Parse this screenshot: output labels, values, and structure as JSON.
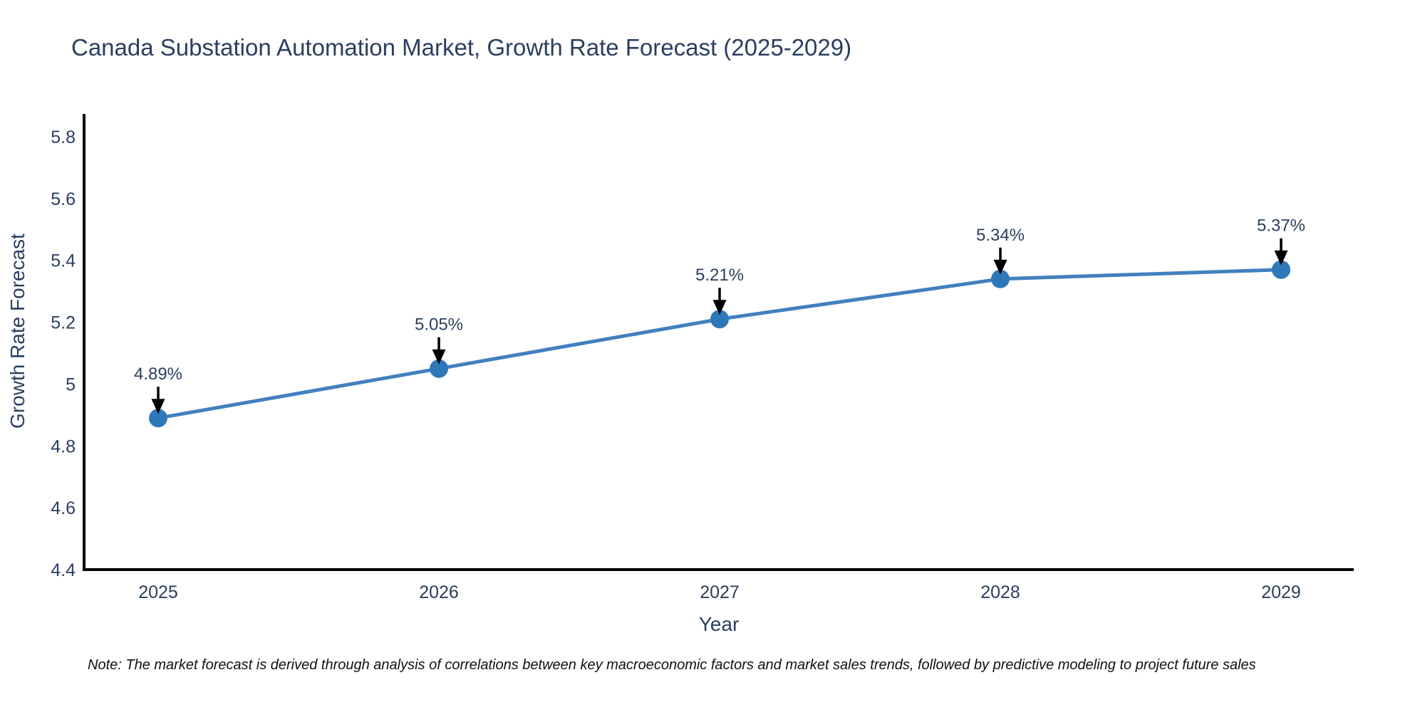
{
  "chart_data": {
    "type": "line",
    "title": "Canada Substation Automation Market, Growth Rate Forecast (2025-2029)",
    "xlabel": "Year",
    "ylabel": "Growth Rate Forecast",
    "categories": [
      "2025",
      "2026",
      "2027",
      "2028",
      "2029"
    ],
    "series": [
      {
        "name": "Growth Rate Forecast",
        "values": [
          4.89,
          5.05,
          5.21,
          5.34,
          5.37
        ]
      }
    ],
    "point_labels": [
      "4.89%",
      "5.05%",
      "5.21%",
      "5.34%",
      "5.37%"
    ],
    "x_ticks": [
      "2025",
      "2026",
      "2027",
      "2028",
      "2029"
    ],
    "y_ticks": [
      "4.4",
      "4.6",
      "4.8",
      "5",
      "5.2",
      "5.4",
      "5.6",
      "5.8"
    ],
    "ylim": [
      4.4,
      5.8
    ],
    "grid": false,
    "legend": "none",
    "annotations": "value labels with black arrows pointing down at each marker",
    "colors": {
      "line": "#4280bf",
      "marker": "#2e77b8",
      "axis": "#000000",
      "text": "#2a3f5f",
      "arrow": "#000000"
    }
  },
  "note": "Note: The market forecast is derived through analysis of correlations between key macroeconomic factors and market sales trends, followed by predictive modeling to project future sales"
}
